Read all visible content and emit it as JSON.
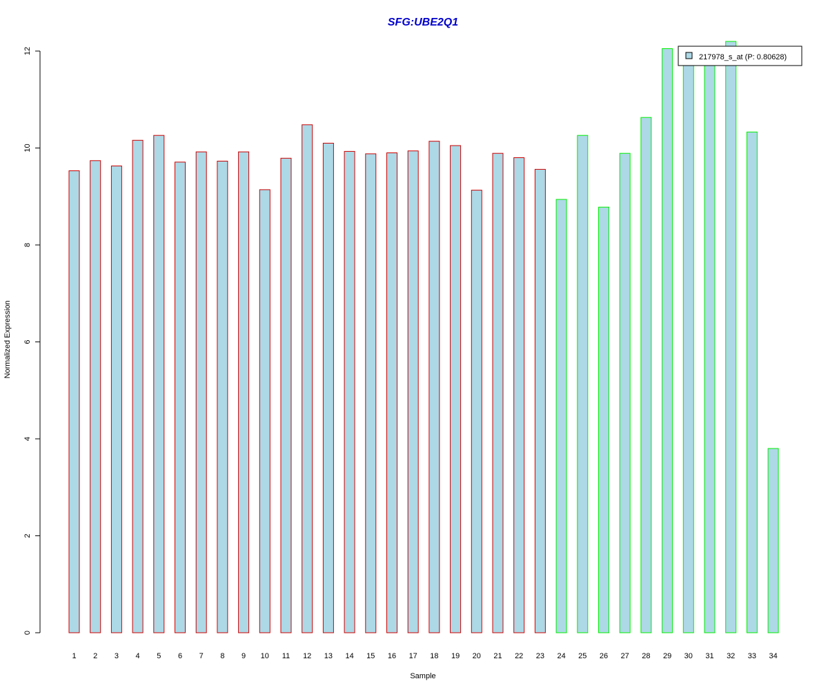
{
  "chart_data": {
    "type": "bar",
    "title": "SFG:UBE2Q1",
    "xlabel": "Sample",
    "ylabel": "Normalized Expression",
    "ylim": [
      0,
      12
    ],
    "yticks": [
      0,
      2,
      4,
      6,
      8,
      10,
      12
    ],
    "categories": [
      "1",
      "2",
      "3",
      "4",
      "5",
      "6",
      "7",
      "8",
      "9",
      "10",
      "11",
      "12",
      "13",
      "14",
      "15",
      "16",
      "17",
      "18",
      "19",
      "20",
      "21",
      "22",
      "23",
      "24",
      "25",
      "26",
      "27",
      "28",
      "29",
      "30",
      "31",
      "32",
      "33",
      "34"
    ],
    "series": [
      {
        "name": "217978_s_at (P: 0.80628)",
        "values": [
          9.53,
          9.74,
          9.63,
          10.16,
          10.26,
          9.71,
          9.92,
          9.73,
          9.92,
          9.14,
          9.79,
          10.48,
          10.1,
          9.93,
          9.88,
          9.9,
          9.94,
          10.14,
          10.05,
          9.13,
          9.89,
          9.8,
          9.56,
          8.94,
          10.26,
          8.78,
          9.89,
          10.63,
          12.05,
          11.85,
          11.75,
          12.2,
          10.33,
          3.8
        ]
      }
    ],
    "bar_groups": [
      {
        "from": 1,
        "to": 23,
        "border_color": "#cc0000"
      },
      {
        "from": 24,
        "to": 34,
        "border_color": "#00ee00"
      }
    ],
    "fill_color": "#add8e6",
    "title_color": "#0000cc",
    "grid": false,
    "legend_position": "top-right",
    "legend": {
      "label": "217978_s_at (P: 0.80628)"
    }
  }
}
